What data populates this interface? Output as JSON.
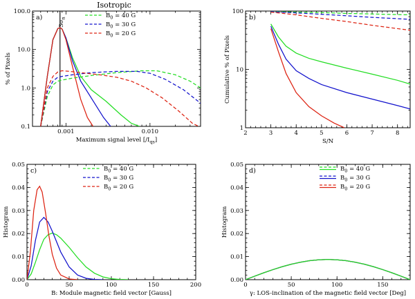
{
  "figure_title": "Isotropic",
  "colors": {
    "B40": "#22dd22",
    "B30": "#1111cc",
    "B20": "#dd2211"
  },
  "chart_data": [
    {
      "id": "a",
      "panel_label": "a)",
      "type": "line",
      "xscale": "log",
      "yscale": "log",
      "xlabel": "Maximum signal level [/I",
      "xlabel_sub": "qs",
      "xlabel_end": "]",
      "ylabel": "% of Pixels",
      "xlim": [
        0.0004,
        0.04
      ],
      "ylim": [
        0.1,
        100
      ],
      "x_ticks": [
        0.001,
        0.01
      ],
      "x_tick_labels": [
        "0.001",
        "0.010"
      ],
      "y_ticks": [
        0.1,
        1,
        10,
        100
      ],
      "y_tick_labels": [
        "0.1",
        "1.0",
        "10.0",
        "100.0"
      ],
      "vline": {
        "x": 0.00085,
        "label": "3σ",
        "label_sub": "n"
      },
      "legend": [
        {
          "label": "B",
          "sub": "0",
          "value": " = 40 G",
          "color_key": "B40",
          "dash": true
        },
        {
          "label": "B",
          "sub": "0",
          "value": " = 30 G",
          "color_key": "B30",
          "dash": true
        },
        {
          "label": "B",
          "sub": "0",
          "value": " = 20 G",
          "color_key": "B20",
          "dash": true
        }
      ],
      "series": [
        {
          "name": "B0 = 40 G",
          "color_key": "B40",
          "dash": false,
          "x": [
            0.0005,
            0.0006,
            0.0007,
            0.0008,
            0.00085,
            0.0009,
            0.001,
            0.0012,
            0.0015,
            0.002,
            0.003,
            0.0045,
            0.006,
            0.0075
          ],
          "y": [
            0.1,
            2,
            18,
            35,
            37,
            34,
            20,
            6,
            2,
            0.9,
            0.45,
            0.2,
            0.12,
            0.1
          ]
        },
        {
          "name": "B0 = 30 G",
          "color_key": "B30",
          "dash": false,
          "x": [
            0.0005,
            0.0006,
            0.0007,
            0.0008,
            0.00085,
            0.0009,
            0.001,
            0.0012,
            0.0015,
            0.002,
            0.0028,
            0.0034
          ],
          "y": [
            0.1,
            2,
            18,
            35,
            37,
            34,
            20,
            5,
            1.5,
            0.55,
            0.17,
            0.1
          ]
        },
        {
          "name": "B0 = 20 G",
          "color_key": "B20",
          "dash": false,
          "x": [
            0.0005,
            0.0006,
            0.0007,
            0.0008,
            0.00085,
            0.0009,
            0.001,
            0.0012,
            0.0015,
            0.0018,
            0.0021
          ],
          "y": [
            0.1,
            2,
            18,
            35,
            37,
            34,
            18,
            3.5,
            0.5,
            0.17,
            0.1
          ]
        },
        {
          "name": "B0 = 40 G (dashed)",
          "color_key": "B40",
          "dash": true,
          "x": [
            0.0005,
            0.0006,
            0.0007,
            0.0008,
            0.0009,
            0.0012,
            0.002,
            0.004,
            0.008,
            0.012,
            0.02,
            0.03,
            0.04
          ],
          "y": [
            0.1,
            0.6,
            1.2,
            1.5,
            1.6,
            1.8,
            2.1,
            2.5,
            2.8,
            2.8,
            2.2,
            1.5,
            1.0
          ]
        },
        {
          "name": "B0 = 30 G (dashed)",
          "color_key": "B30",
          "dash": true,
          "x": [
            0.0005,
            0.0006,
            0.0007,
            0.0008,
            0.0009,
            0.0012,
            0.002,
            0.004,
            0.007,
            0.01,
            0.015,
            0.025,
            0.04
          ],
          "y": [
            0.1,
            0.8,
            1.5,
            1.9,
            2.0,
            2.2,
            2.5,
            2.7,
            2.7,
            2.4,
            1.7,
            0.9,
            0.4
          ]
        },
        {
          "name": "B0 = 20 G (dashed)",
          "color_key": "B20",
          "dash": true,
          "x": [
            0.0005,
            0.0006,
            0.0007,
            0.0008,
            0.0009,
            0.0011,
            0.0015,
            0.0025,
            0.004,
            0.006,
            0.009,
            0.014,
            0.022,
            0.032,
            0.038
          ],
          "y": [
            0.1,
            1.0,
            2.0,
            2.6,
            2.8,
            2.7,
            2.5,
            2.2,
            1.9,
            1.5,
            1.0,
            0.55,
            0.25,
            0.12,
            0.1
          ]
        }
      ]
    },
    {
      "id": "b",
      "panel_label": "b)",
      "type": "line",
      "xscale": "linear",
      "yscale": "log",
      "xlabel": "S/N",
      "ylabel": "Cumulative % of Pixels",
      "xlim": [
        2,
        8.5
      ],
      "ylim": [
        1,
        100
      ],
      "x_ticks": [
        2,
        3,
        4,
        5,
        6,
        7,
        8
      ],
      "x_tick_labels": [
        "2",
        "3",
        "4",
        "5",
        "6",
        "7",
        "8"
      ],
      "y_ticks": [
        1,
        10,
        100
      ],
      "y_tick_labels": [
        "1",
        "10",
        "100"
      ],
      "series": [
        {
          "name": "B0 = 40 G",
          "color_key": "B40",
          "dash": false,
          "x": [
            3,
            3.3,
            3.6,
            4,
            4.5,
            5,
            6,
            7,
            8,
            8.5
          ],
          "y": [
            60,
            36,
            25,
            19,
            15.5,
            13.5,
            10.5,
            8.3,
            6.5,
            5.6
          ]
        },
        {
          "name": "B0 = 30 G",
          "color_key": "B30",
          "dash": false,
          "x": [
            3,
            3.3,
            3.6,
            4,
            4.5,
            5,
            6,
            7,
            8,
            8.5
          ],
          "y": [
            55,
            27,
            15,
            9.5,
            7,
            5.5,
            4,
            3.1,
            2.4,
            2.1
          ]
        },
        {
          "name": "B0 = 20 G",
          "color_key": "B20",
          "dash": false,
          "x": [
            3,
            3.3,
            3.6,
            4,
            4.5,
            5,
            5.5,
            5.9
          ],
          "y": [
            50,
            20,
            8.5,
            4,
            2.3,
            1.6,
            1.2,
            1.0
          ]
        },
        {
          "name": "B0 = 40 G (dashed)",
          "color_key": "B40",
          "dash": true,
          "x": [
            3,
            4,
            5,
            6,
            7,
            8,
            8.5
          ],
          "y": [
            99,
            96,
            94,
            91,
            89,
            87,
            86
          ]
        },
        {
          "name": "B0 = 30 G (dashed)",
          "color_key": "B30",
          "dash": true,
          "x": [
            3,
            4,
            5,
            6,
            7,
            8,
            8.5
          ],
          "y": [
            98,
            93,
            88,
            83,
            78,
            74,
            72
          ]
        },
        {
          "name": "B0 = 20 G (dashed)",
          "color_key": "B20",
          "dash": true,
          "x": [
            3,
            4,
            5,
            6,
            7,
            8,
            8.5
          ],
          "y": [
            96,
            86,
            75,
            66,
            57,
            50,
            47
          ]
        }
      ]
    },
    {
      "id": "c",
      "panel_label": "c)",
      "type": "line",
      "xscale": "linear",
      "yscale": "linear",
      "xlabel": "B: Module magnetic field vector [Gauss]",
      "ylabel": "Histogram",
      "xlim": [
        0,
        200
      ],
      "ylim": [
        0,
        0.05
      ],
      "x_ticks": [
        0,
        50,
        100,
        150,
        200
      ],
      "x_tick_labels": [
        "0",
        "50",
        "100",
        "150",
        "200"
      ],
      "y_ticks": [
        0,
        0.01,
        0.02,
        0.03,
        0.04,
        0.05
      ],
      "y_tick_labels": [
        "0.00",
        "0.01",
        "0.02",
        "0.03",
        "0.04",
        "0.05"
      ],
      "legend": [
        {
          "label": "B",
          "sub": "0",
          "value": " = 40 G",
          "color_key": "B40",
          "dash": true
        },
        {
          "label": "B",
          "sub": "0",
          "value": " = 30 G",
          "color_key": "B30",
          "dash": true
        },
        {
          "label": "B",
          "sub": "0",
          "value": " = 20 G",
          "color_key": "B20",
          "dash": true
        }
      ],
      "series": [
        {
          "name": "B0 = 40 G",
          "color_key": "B40",
          "dash": false,
          "x": [
            0,
            5,
            10,
            15,
            20,
            25,
            30,
            35,
            40,
            50,
            60,
            70,
            80,
            90,
            100,
            110,
            120
          ],
          "y": [
            0,
            0.0025,
            0.0075,
            0.013,
            0.0175,
            0.0195,
            0.0202,
            0.0195,
            0.018,
            0.014,
            0.0095,
            0.0055,
            0.0028,
            0.0012,
            0.0004,
            0.0001,
            0
          ]
        },
        {
          "name": "B0 = 30 G",
          "color_key": "B30",
          "dash": false,
          "x": [
            0,
            5,
            10,
            15,
            20,
            25,
            30,
            40,
            50,
            60,
            70,
            80,
            90
          ],
          "y": [
            0,
            0.006,
            0.017,
            0.025,
            0.027,
            0.025,
            0.021,
            0.012,
            0.0055,
            0.002,
            0.0006,
            0.0001,
            0
          ]
        },
        {
          "name": "B0 = 20 G",
          "color_key": "B20",
          "dash": false,
          "x": [
            0,
            4,
            8,
            12,
            15,
            18,
            22,
            26,
            30,
            35,
            40,
            50,
            60
          ],
          "y": [
            0,
            0.012,
            0.03,
            0.039,
            0.0405,
            0.038,
            0.029,
            0.019,
            0.011,
            0.005,
            0.002,
            0.0003,
            0
          ]
        }
      ]
    },
    {
      "id": "d",
      "panel_label": "d)",
      "type": "line",
      "xscale": "linear",
      "yscale": "linear",
      "xlabel": "γ: LOS-inclination of the magnetic field vector [Deg]",
      "ylabel": "Histogram",
      "xlim": [
        0,
        180
      ],
      "ylim": [
        0,
        0.05
      ],
      "x_ticks": [
        0,
        50,
        100,
        150
      ],
      "x_tick_labels": [
        "0",
        "50",
        "100",
        "150"
      ],
      "y_ticks": [
        0,
        0.01,
        0.02,
        0.03,
        0.04,
        0.05
      ],
      "y_tick_labels": [
        "0.00",
        "0.01",
        "0.02",
        "0.03",
        "0.04",
        "0.05"
      ],
      "legend": [
        {
          "label": "B",
          "sub": "0",
          "value": " = 40 G",
          "color_key": "B40",
          "dash": "pair"
        },
        {
          "label": "B",
          "sub": "0",
          "value": " = 30 G",
          "color_key": "B30",
          "dash": "pair"
        },
        {
          "label": "B",
          "sub": "0",
          "value": " = 20 G",
          "color_key": "B20",
          "dash": "pair"
        }
      ],
      "series": [
        {
          "name": "B0 = 20 G",
          "color_key": "B20",
          "dash": false,
          "x": [
            0,
            10,
            20,
            30,
            40,
            50,
            60,
            70,
            80,
            90,
            100,
            110,
            120,
            130,
            140,
            150,
            160,
            170,
            180
          ],
          "y": [
            0,
            0.00152,
            0.00299,
            0.00436,
            0.00561,
            0.00669,
            0.00757,
            0.00822,
            0.00862,
            0.00875,
            0.00862,
            0.00822,
            0.00757,
            0.00669,
            0.00561,
            0.00436,
            0.00299,
            0.00152,
            0
          ]
        },
        {
          "name": "B0 = 30 G",
          "color_key": "B30",
          "dash": false,
          "x": [
            0,
            10,
            20,
            30,
            40,
            50,
            60,
            70,
            80,
            90,
            100,
            110,
            120,
            130,
            140,
            150,
            160,
            170,
            180
          ],
          "y": [
            0,
            0.00152,
            0.00299,
            0.00436,
            0.00561,
            0.00669,
            0.00757,
            0.00822,
            0.00862,
            0.00875,
            0.00862,
            0.00822,
            0.00757,
            0.00669,
            0.00561,
            0.00436,
            0.00299,
            0.00152,
            0
          ]
        },
        {
          "name": "B0 = 40 G",
          "color_key": "B40",
          "dash": false,
          "x": [
            0,
            10,
            20,
            30,
            40,
            50,
            60,
            70,
            80,
            90,
            100,
            110,
            120,
            130,
            140,
            150,
            160,
            170,
            180
          ],
          "y": [
            0,
            0.00152,
            0.00299,
            0.00436,
            0.00561,
            0.00669,
            0.00757,
            0.00822,
            0.00862,
            0.00875,
            0.00862,
            0.00822,
            0.00757,
            0.00669,
            0.00561,
            0.00436,
            0.00299,
            0.00152,
            0
          ]
        }
      ]
    }
  ]
}
